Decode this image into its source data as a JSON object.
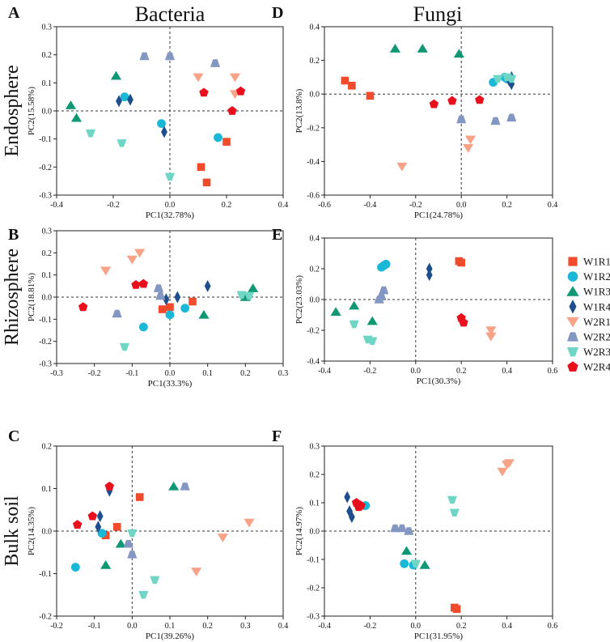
{
  "col_titles": [
    "Bacteria",
    "Fungi"
  ],
  "row_titles": [
    "Endosphere",
    "Rhizosphere",
    "Bulk soil"
  ],
  "legend": {
    "entries": [
      {
        "id": "W1R1",
        "label": "W1R1",
        "color": "#f04b2c",
        "shape": "square"
      },
      {
        "id": "W1R2",
        "label": "W1R2",
        "color": "#1ab8d6",
        "shape": "circle"
      },
      {
        "id": "W1R3",
        "label": "W1R3",
        "color": "#109874",
        "shape": "triangle-up"
      },
      {
        "id": "W1R4",
        "label": "W1R4",
        "color": "#1f4e8e",
        "shape": "diamond"
      },
      {
        "id": "W2R1",
        "label": "W2R1",
        "color": "#f8a287",
        "shape": "triangle-down"
      },
      {
        "id": "W2R2",
        "label": "W2R2",
        "color": "#8496c2",
        "shape": "trapezoid"
      },
      {
        "id": "W2R3",
        "label": "W2R3",
        "color": "#6fd6c6",
        "shape": "triangle-down-trap"
      },
      {
        "id": "W2R4",
        "label": "W2R4",
        "color": "#e8101c",
        "shape": "pentagon"
      }
    ]
  },
  "chart_data": [
    {
      "panel": "A",
      "type": "scatter",
      "xlabel": "PC1(32.78%)",
      "ylabel": "PC2(15.58%)",
      "xlim": [
        -0.4,
        0.4
      ],
      "ylim": [
        -0.3,
        0.3
      ],
      "xticks": [
        "-0.4",
        "-0.2",
        "0.0",
        "0.2",
        "0.4"
      ],
      "yticks": [
        "-0.3",
        "-0.2",
        "-0.1",
        "0.0",
        "0.1",
        "0.2",
        "0.3"
      ],
      "series": [
        {
          "name": "W1R1",
          "points": [
            [
              0.11,
              -0.2
            ],
            [
              0.13,
              -0.255
            ],
            [
              0.2,
              -0.11
            ]
          ]
        },
        {
          "name": "W1R2",
          "points": [
            [
              -0.16,
              0.05
            ],
            [
              -0.03,
              -0.045
            ],
            [
              0.17,
              -0.095
            ]
          ]
        },
        {
          "name": "W1R3",
          "points": [
            [
              -0.35,
              0.02
            ],
            [
              -0.33,
              -0.025
            ],
            [
              -0.19,
              0.125
            ]
          ]
        },
        {
          "name": "W1R4",
          "points": [
            [
              -0.18,
              0.035
            ],
            [
              -0.14,
              0.04
            ],
            [
              -0.02,
              -0.075
            ]
          ]
        },
        {
          "name": "W2R1",
          "points": [
            [
              0.1,
              0.12
            ],
            [
              0.23,
              0.06
            ],
            [
              0.23,
              0.12
            ]
          ]
        },
        {
          "name": "W2R2",
          "points": [
            [
              -0.09,
              0.195
            ],
            [
              0.0,
              0.195
            ],
            [
              0.16,
              0.17
            ]
          ]
        },
        {
          "name": "W2R3",
          "points": [
            [
              -0.28,
              -0.08
            ],
            [
              -0.17,
              -0.115
            ],
            [
              0.0,
              -0.235
            ]
          ]
        },
        {
          "name": "W2R4",
          "points": [
            [
              0.12,
              0.065
            ],
            [
              0.22,
              0.0
            ],
            [
              0.25,
              0.07
            ]
          ]
        }
      ]
    },
    {
      "panel": "D",
      "type": "scatter",
      "xlabel": "PC1(24.78%)",
      "ylabel": "PC2(13.8%)",
      "xlim": [
        -0.6,
        0.4
      ],
      "ylim": [
        -0.6,
        0.4
      ],
      "xticks": [
        "-0.6",
        "-0.4",
        "-0.2",
        "0.0",
        "0.2",
        "0.4"
      ],
      "yticks": [
        "-0.6",
        "-0.4",
        "-0.2",
        "0.0",
        "0.2",
        "0.4"
      ],
      "series": [
        {
          "name": "W1R1",
          "points": [
            [
              -0.51,
              0.08
            ],
            [
              -0.48,
              0.05
            ],
            [
              -0.4,
              -0.01
            ]
          ]
        },
        {
          "name": "W1R2",
          "points": [
            [
              0.14,
              0.07
            ],
            [
              0.19,
              0.1
            ],
            [
              0.2,
              0.09
            ]
          ]
        },
        {
          "name": "W1R3",
          "points": [
            [
              -0.29,
              0.27
            ],
            [
              -0.17,
              0.27
            ],
            [
              -0.01,
              0.24
            ]
          ]
        },
        {
          "name": "W1R4",
          "points": [
            [
              0.21,
              0.08
            ],
            [
              0.22,
              0.06
            ],
            [
              0.22,
              0.1
            ]
          ]
        },
        {
          "name": "W2R1",
          "points": [
            [
              -0.26,
              -0.43
            ],
            [
              0.03,
              -0.32
            ],
            [
              0.04,
              -0.27
            ]
          ]
        },
        {
          "name": "W2R2",
          "points": [
            [
              0.0,
              -0.15
            ],
            [
              0.15,
              -0.16
            ],
            [
              0.22,
              -0.14
            ]
          ]
        },
        {
          "name": "W2R3",
          "points": [
            [
              0.16,
              0.09
            ],
            [
              0.2,
              0.1
            ],
            [
              0.22,
              0.09
            ]
          ]
        },
        {
          "name": "W2R4",
          "points": [
            [
              -0.12,
              -0.06
            ],
            [
              -0.04,
              -0.04
            ],
            [
              0.08,
              -0.035
            ]
          ]
        }
      ]
    },
    {
      "panel": "B",
      "type": "scatter",
      "xlabel": "PC1(33.3%)",
      "ylabel": "PC2(18.81%)",
      "xlim": [
        -0.3,
        0.3
      ],
      "ylim": [
        -0.3,
        0.3
      ],
      "xticks": [
        "-0.3",
        "-0.2",
        "-0.1",
        "0.0",
        "0.1",
        "0.2",
        "0.3"
      ],
      "yticks": [
        "-0.3",
        "-0.2",
        "-0.1",
        "0.0",
        "0.1",
        "0.2",
        "0.3"
      ],
      "series": [
        {
          "name": "W1R1",
          "points": [
            [
              -0.02,
              -0.055
            ],
            [
              0.0,
              -0.045
            ],
            [
              0.06,
              -0.02
            ]
          ]
        },
        {
          "name": "W1R2",
          "points": [
            [
              -0.07,
              -0.135
            ],
            [
              0.0,
              -0.08
            ],
            [
              0.04,
              -0.05
            ]
          ]
        },
        {
          "name": "W1R3",
          "points": [
            [
              0.09,
              -0.08
            ],
            [
              0.2,
              0.0
            ],
            [
              0.22,
              0.04
            ]
          ]
        },
        {
          "name": "W1R4",
          "points": [
            [
              -0.01,
              -0.01
            ],
            [
              0.02,
              0.0
            ],
            [
              0.1,
              0.05
            ]
          ]
        },
        {
          "name": "W2R1",
          "points": [
            [
              -0.17,
              0.12
            ],
            [
              -0.1,
              0.17
            ],
            [
              -0.08,
              0.2
            ]
          ]
        },
        {
          "name": "W2R2",
          "points": [
            [
              -0.14,
              -0.075
            ],
            [
              -0.03,
              0.04
            ],
            [
              -0.025,
              0.005
            ]
          ]
        },
        {
          "name": "W2R3",
          "points": [
            [
              -0.12,
              -0.225
            ],
            [
              0.19,
              0.01
            ],
            [
              0.21,
              0.005
            ]
          ]
        },
        {
          "name": "W2R4",
          "points": [
            [
              -0.23,
              -0.045
            ],
            [
              -0.09,
              0.055
            ],
            [
              -0.07,
              0.06
            ]
          ]
        }
      ]
    },
    {
      "panel": "E",
      "type": "scatter",
      "xlabel": "PC1(30.3%)",
      "ylabel": "PC2(23.03%)",
      "xlim": [
        -0.4,
        0.6
      ],
      "ylim": [
        -0.4,
        0.4
      ],
      "xticks": [
        "-0.4",
        "-0.2",
        "0.0",
        "0.2",
        "0.4",
        "0.6"
      ],
      "yticks": [
        "-0.4",
        "-0.2",
        "0.0",
        "0.2",
        "0.4"
      ],
      "series": [
        {
          "name": "W1R1",
          "points": [
            [
              0.19,
              0.25
            ],
            [
              0.2,
              0.24
            ]
          ]
        },
        {
          "name": "W1R2",
          "points": [
            [
              -0.15,
              0.21
            ],
            [
              -0.14,
              0.22
            ],
            [
              -0.13,
              0.23
            ]
          ]
        },
        {
          "name": "W1R3",
          "points": [
            [
              -0.35,
              -0.08
            ],
            [
              -0.27,
              -0.04
            ],
            [
              -0.19,
              -0.14
            ]
          ]
        },
        {
          "name": "W1R4",
          "points": [
            [
              0.06,
              0.2
            ],
            [
              0.06,
              0.16
            ]
          ]
        },
        {
          "name": "W2R1",
          "points": [
            [
              0.33,
              -0.2
            ],
            [
              0.33,
              -0.24
            ]
          ]
        },
        {
          "name": "W2R2",
          "points": [
            [
              -0.16,
              0.0
            ],
            [
              -0.15,
              0.02
            ],
            [
              -0.14,
              0.06
            ]
          ]
        },
        {
          "name": "W2R3",
          "points": [
            [
              -0.27,
              -0.16
            ],
            [
              -0.21,
              -0.26
            ],
            [
              -0.19,
              -0.27
            ]
          ]
        },
        {
          "name": "W2R4",
          "points": [
            [
              0.2,
              -0.12
            ],
            [
              0.21,
              -0.15
            ]
          ]
        }
      ]
    },
    {
      "panel": "C",
      "type": "scatter",
      "xlabel": "PC1(39.26%)",
      "ylabel": "PC2(14.35%)",
      "xlim": [
        -0.2,
        0.4
      ],
      "ylim": [
        -0.2,
        0.2
      ],
      "xticks": [
        "-0.2",
        "-0.1",
        "0.0",
        "0.1",
        "0.2",
        "0.3",
        "0.4"
      ],
      "yticks": [
        "-0.2",
        "-0.1",
        "0.0",
        "0.1",
        "0.2"
      ],
      "series": [
        {
          "name": "W1R1",
          "points": [
            [
              -0.07,
              -0.01
            ],
            [
              -0.04,
              0.01
            ],
            [
              0.02,
              0.08
            ]
          ]
        },
        {
          "name": "W1R2",
          "points": [
            [
              -0.15,
              -0.085
            ],
            [
              -0.08,
              -0.005
            ]
          ]
        },
        {
          "name": "W1R3",
          "points": [
            [
              -0.07,
              -0.08
            ],
            [
              -0.03,
              -0.03
            ],
            [
              0.11,
              0.105
            ]
          ]
        },
        {
          "name": "W1R4",
          "points": [
            [
              -0.09,
              0.01
            ],
            [
              -0.085,
              0.035
            ],
            [
              -0.06,
              0.095
            ]
          ]
        },
        {
          "name": "W2R1",
          "points": [
            [
              0.17,
              -0.095
            ],
            [
              0.24,
              -0.015
            ],
            [
              0.31,
              0.02
            ]
          ]
        },
        {
          "name": "W2R2",
          "points": [
            [
              -0.01,
              -0.03
            ],
            [
              0.0,
              -0.055
            ],
            [
              0.14,
              0.105
            ]
          ]
        },
        {
          "name": "W2R3",
          "points": [
            [
              0.0,
              -0.005
            ],
            [
              0.03,
              -0.15
            ],
            [
              0.06,
              -0.115
            ]
          ]
        },
        {
          "name": "W2R4",
          "points": [
            [
              -0.145,
              0.015
            ],
            [
              -0.105,
              0.035
            ],
            [
              -0.06,
              0.105
            ]
          ]
        }
      ]
    },
    {
      "panel": "F",
      "type": "scatter",
      "xlabel": "PC1(31.95%)",
      "ylabel": "PC2(14.97%)",
      "xlim": [
        -0.4,
        0.6
      ],
      "ylim": [
        -0.3,
        0.3
      ],
      "xticks": [
        "-0.4",
        "-0.2",
        "0.0",
        "0.2",
        "0.4",
        "0.6"
      ],
      "yticks": [
        "-0.3",
        "-0.2",
        "-0.1",
        "0.0",
        "0.1",
        "0.2",
        "0.3"
      ],
      "series": [
        {
          "name": "W1R1",
          "points": [
            [
              0.17,
              -0.27
            ],
            [
              0.18,
              -0.275
            ]
          ]
        },
        {
          "name": "W1R2",
          "points": [
            [
              -0.22,
              0.09
            ],
            [
              -0.05,
              -0.115
            ],
            [
              -0.01,
              -0.12
            ]
          ]
        },
        {
          "name": "W1R3",
          "points": [
            [
              -0.04,
              -0.07
            ],
            [
              0.04,
              -0.12
            ]
          ]
        },
        {
          "name": "W1R4",
          "points": [
            [
              -0.3,
              0.12
            ],
            [
              -0.29,
              0.07
            ],
            [
              -0.28,
              0.05
            ]
          ]
        },
        {
          "name": "W2R1",
          "points": [
            [
              0.38,
              0.21
            ],
            [
              0.4,
              0.235
            ],
            [
              0.41,
              0.24
            ]
          ]
        },
        {
          "name": "W2R2",
          "points": [
            [
              -0.09,
              0.01
            ],
            [
              -0.06,
              0.01
            ],
            [
              -0.03,
              0.0
            ]
          ]
        },
        {
          "name": "W2R3",
          "points": [
            [
              0.0,
              -0.115
            ],
            [
              0.16,
              0.11
            ],
            [
              0.17,
              0.065
            ]
          ]
        },
        {
          "name": "W2R4",
          "points": [
            [
              -0.26,
              0.1
            ],
            [
              -0.25,
              0.085
            ],
            [
              -0.24,
              0.09
            ]
          ]
        }
      ]
    }
  ]
}
